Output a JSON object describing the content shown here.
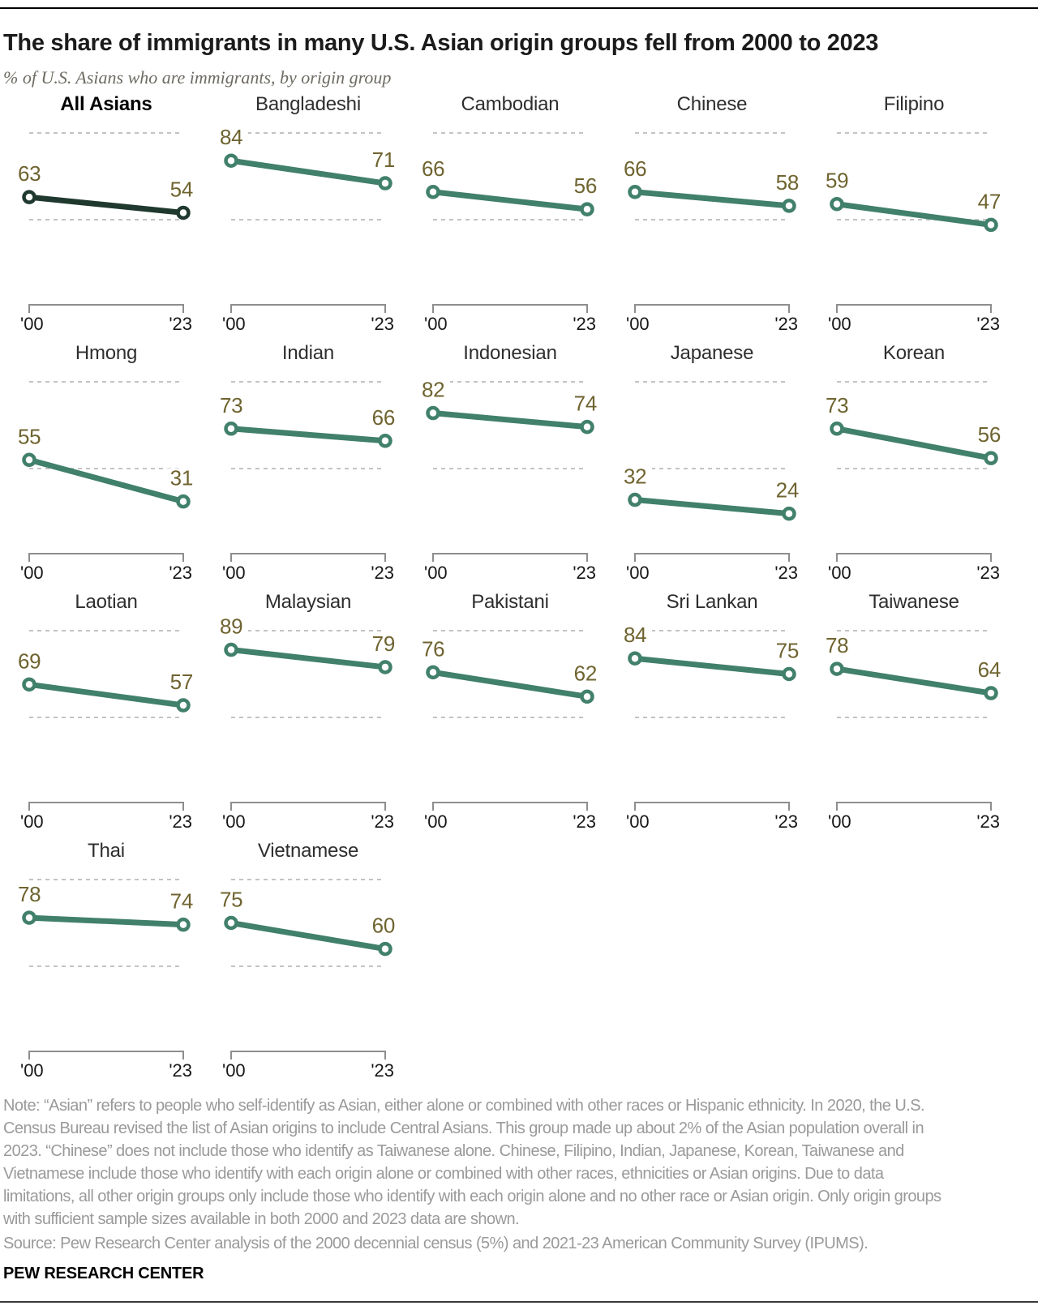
{
  "header": {
    "title": "The share of immigrants in many U.S. Asian origin groups fell from 2000 to 2023",
    "subtitle": "% of U.S. Asians who are immigrants, by origin group"
  },
  "chart_data": {
    "type": "line",
    "subtype": "slope-small-multiples",
    "title": "The share of immigrants in many U.S. Asian origin groups fell from 2000 to 2023",
    "ylabel": "% of U.S. Asians who are immigrants",
    "x_labels": [
      "'00",
      "'23"
    ],
    "years": [
      2000,
      2023
    ],
    "ylim": [
      0,
      100
    ],
    "reference_lines": [
      100,
      50
    ],
    "grid": "dashed reference lines at 100 and 50",
    "series": [
      {
        "name": "All Asians",
        "values": [
          63,
          54
        ],
        "emphasis": true
      },
      {
        "name": "Bangladeshi",
        "values": [
          84,
          71
        ],
        "emphasis": false
      },
      {
        "name": "Cambodian",
        "values": [
          66,
          56
        ],
        "emphasis": false
      },
      {
        "name": "Chinese",
        "values": [
          66,
          58
        ],
        "emphasis": false
      },
      {
        "name": "Filipino",
        "values": [
          59,
          47
        ],
        "emphasis": false
      },
      {
        "name": "Hmong",
        "values": [
          55,
          31
        ],
        "emphasis": false
      },
      {
        "name": "Indian",
        "values": [
          73,
          66
        ],
        "emphasis": false
      },
      {
        "name": "Indonesian",
        "values": [
          82,
          74
        ],
        "emphasis": false
      },
      {
        "name": "Japanese",
        "values": [
          32,
          24
        ],
        "emphasis": false
      },
      {
        "name": "Korean",
        "values": [
          73,
          56
        ],
        "emphasis": false
      },
      {
        "name": "Laotian",
        "values": [
          69,
          57
        ],
        "emphasis": false
      },
      {
        "name": "Malaysian",
        "values": [
          89,
          79
        ],
        "emphasis": false
      },
      {
        "name": "Pakistani",
        "values": [
          76,
          62
        ],
        "emphasis": false
      },
      {
        "name": "Sri Lankan",
        "values": [
          84,
          75
        ],
        "emphasis": false
      },
      {
        "name": "Taiwanese",
        "values": [
          78,
          64
        ],
        "emphasis": false
      },
      {
        "name": "Thai",
        "values": [
          78,
          74
        ],
        "emphasis": false
      },
      {
        "name": "Vietnamese",
        "values": [
          75,
          60
        ],
        "emphasis": false
      }
    ],
    "colors": {
      "line": "#41806a",
      "line_emphasis": "#20392f",
      "value_label": "#6f6430",
      "grid": "#c3c3c3",
      "axis": "#8e8e8e"
    }
  },
  "footer": {
    "note_lines": [
      "Note: “Asian” refers to people who self-identify as Asian, either alone or combined with other races or Hispanic ethnicity. In 2020, the U.S.",
      "Census Bureau revised the list of Asian origins to include Central Asians. This group made up about 2% of the Asian population overall in",
      "2023. “Chinese” does not include those who identify as Taiwanese alone. Chinese, Filipino, Indian, Japanese, Korean, Taiwanese and",
      "Vietnamese include those who identify with each origin alone or combined with other races, ethnicities or Asian origins. Due to data",
      "limitations, all other origin groups only include those who identify with each origin alone and no other race or Asian origin. Only origin groups",
      "with sufficient sample sizes available in both 2000 and 2023 data are shown."
    ],
    "source": "Source: Pew Research Center analysis of the 2000 decennial census (5%) and 2021-23 American Community Survey (IPUMS).",
    "brand": "PEW RESEARCH CENTER"
  }
}
